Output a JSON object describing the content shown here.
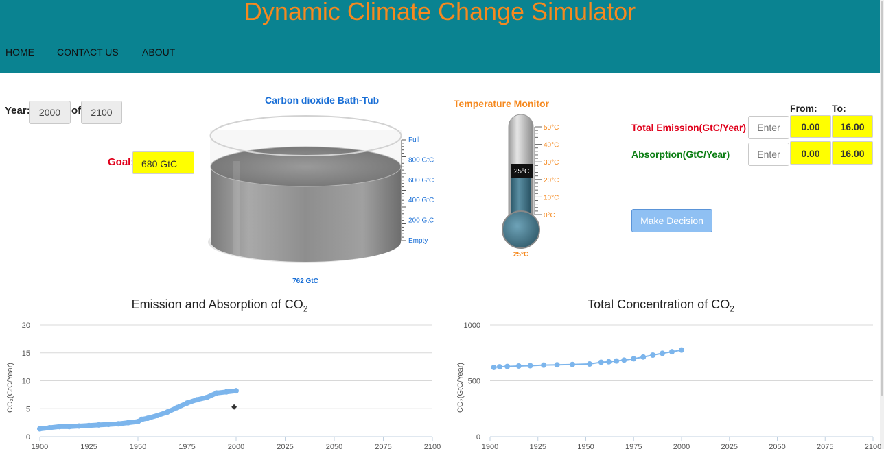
{
  "header": {
    "title": "Dynamic Climate Change Simulator",
    "nav": [
      "HOME",
      "CONTACT US",
      "ABOUT"
    ]
  },
  "controls": {
    "year_label": "Year:",
    "year_value": "2000",
    "of_label": "of",
    "year_end": "2100",
    "goal_label": "Goal:",
    "goal_value": "680 GtC"
  },
  "bathtub": {
    "title": "Carbon dioxide Bath-Tub",
    "scale_labels": [
      "Full",
      "800 GtC",
      "600 GtC",
      "400 GtC",
      "200 GtC",
      "Empty"
    ],
    "value_label": "762 GtC",
    "level": 762,
    "capacity": 1000
  },
  "thermometer": {
    "title": "Temperature Monitor",
    "scale_labels": [
      "50°C",
      "40°C",
      "30°C",
      "20°C",
      "10°C",
      "0°C"
    ],
    "tooltip": "25°C",
    "value_label": "25°C",
    "value": 25,
    "max": 50
  },
  "decision": {
    "from_label": "From:",
    "to_label": "To:",
    "emission_label": "Total Emission(GtC/Year)",
    "absorption_label": "Absorption(GtC/Year)",
    "input_placeholder": "Enter",
    "emission_from": "0.00",
    "emission_to": "16.00",
    "absorption_from": "0.00",
    "absorption_to": "16.00",
    "button_label": "Make Decision"
  },
  "colors": {
    "header_bg": "#0a8391",
    "title_orange": "#f5891f",
    "emission_red": "#e0001b",
    "absorption_green": "#0a7d12",
    "series_blue": "#7cb5ec",
    "bathtub_blue": "#1a6fd6"
  },
  "chart_data": [
    {
      "type": "scatter",
      "title": "Emission and Absorption of CO",
      "title_sub": "2",
      "ylabel": "CO₂(GtC/Year)",
      "xlim": [
        1900,
        2100
      ],
      "ylim": [
        0,
        20
      ],
      "xticks": [
        1900,
        1925,
        1950,
        1975,
        2000,
        2025,
        2050,
        2075,
        2100
      ],
      "yticks": [
        0,
        5,
        10,
        15,
        20
      ],
      "series": [
        {
          "x": [
            1900,
            1905,
            1910,
            1915,
            1920,
            1925,
            1930,
            1935,
            1940,
            1945,
            1950,
            1952,
            1955,
            1960,
            1965,
            1970,
            1975,
            1980,
            1985,
            1990,
            1995,
            2000
          ],
          "y": [
            1.4,
            1.6,
            1.8,
            1.8,
            1.9,
            2.0,
            2.1,
            2.2,
            2.3,
            2.5,
            2.7,
            3.1,
            3.3,
            3.8,
            4.4,
            5.2,
            6.0,
            6.6,
            7.0,
            7.8,
            8.0,
            8.2
          ]
        },
        {
          "x": [
            1999
          ],
          "y": [
            5.3
          ]
        }
      ]
    },
    {
      "type": "line",
      "title": "Total Concentration of CO",
      "title_sub": "2",
      "ylabel": "CO₂(GtC/Year)",
      "xlim": [
        1900,
        2100
      ],
      "ylim": [
        0,
        1000
      ],
      "xticks": [
        1900,
        1925,
        1950,
        1975,
        2000,
        2025,
        2050,
        2075,
        2100
      ],
      "yticks": [
        0,
        500,
        1000
      ],
      "series": [
        {
          "x": [
            1902,
            1905,
            1909,
            1915,
            1921,
            1928,
            1935,
            1943,
            1952,
            1958,
            1962,
            1966,
            1970,
            1975,
            1980,
            1985,
            1990,
            1995,
            2000
          ],
          "y": [
            620,
            625,
            628,
            632,
            635,
            640,
            643,
            646,
            650,
            666,
            670,
            677,
            685,
            697,
            713,
            730,
            746,
            760,
            775
          ]
        }
      ]
    }
  ]
}
